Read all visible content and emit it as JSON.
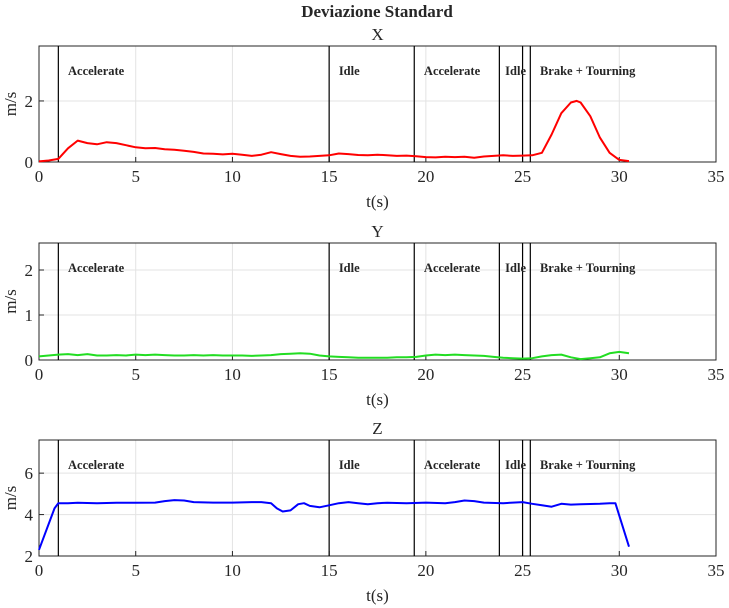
{
  "title": "Deviazione Standard",
  "chart_data": [
    {
      "type": "line",
      "title": "X",
      "xlabel": "t(s)",
      "ylabel": "m/s",
      "xlim": [
        0,
        35
      ],
      "ylim": [
        0,
        3.8
      ],
      "xticks": [
        0,
        5,
        10,
        15,
        20,
        25,
        30,
        35
      ],
      "yticks": [
        0,
        2
      ],
      "grid": true,
      "color": "#ff0000",
      "phase_lines": [
        1.0,
        15.0,
        19.4,
        23.8,
        25.0,
        25.4
      ],
      "phase_labels": [
        {
          "text": "Accelerate",
          "x": 1.5
        },
        {
          "text": "Idle",
          "x": 15.5
        },
        {
          "text": "Accelerate",
          "x": 19.9
        },
        {
          "text": "Idle",
          "x": 24.1
        },
        {
          "text": "Brake + Tourning",
          "x": 25.9
        }
      ],
      "x": [
        0,
        0.5,
        1,
        1.5,
        2,
        2.5,
        3,
        3.5,
        4,
        4.5,
        5,
        5.5,
        6,
        6.5,
        7,
        7.5,
        8,
        8.5,
        9,
        9.5,
        10,
        10.5,
        11,
        11.5,
        12,
        12.5,
        13,
        13.5,
        14,
        14.5,
        15,
        15.5,
        16,
        16.5,
        17,
        17.5,
        18,
        18.5,
        19,
        19.5,
        20,
        20.5,
        21,
        21.5,
        22,
        22.5,
        23,
        23.5,
        24,
        24.5,
        25,
        25.5,
        26,
        26.5,
        27,
        27.5,
        27.8,
        28,
        28.5,
        29,
        29.5,
        30,
        30.5
      ],
      "values": [
        0.02,
        0.05,
        0.1,
        0.45,
        0.7,
        0.62,
        0.58,
        0.65,
        0.62,
        0.55,
        0.48,
        0.45,
        0.46,
        0.42,
        0.4,
        0.37,
        0.33,
        0.28,
        0.27,
        0.25,
        0.27,
        0.24,
        0.2,
        0.24,
        0.32,
        0.26,
        0.2,
        0.17,
        0.18,
        0.2,
        0.22,
        0.28,
        0.26,
        0.23,
        0.22,
        0.24,
        0.22,
        0.2,
        0.21,
        0.19,
        0.16,
        0.15,
        0.17,
        0.16,
        0.17,
        0.14,
        0.18,
        0.2,
        0.22,
        0.2,
        0.21,
        0.22,
        0.3,
        0.9,
        1.6,
        1.95,
        2.0,
        1.95,
        1.5,
        0.8,
        0.3,
        0.07,
        0.03
      ]
    },
    {
      "type": "line",
      "title": "Y",
      "xlabel": "t(s)",
      "ylabel": "m/s",
      "xlim": [
        0,
        35
      ],
      "ylim": [
        0,
        2.6
      ],
      "xticks": [
        0,
        5,
        10,
        15,
        20,
        25,
        30,
        35
      ],
      "yticks": [
        0,
        1,
        2
      ],
      "grid": true,
      "color": "#22dd22",
      "phase_lines": [
        1.0,
        15.0,
        19.4,
        23.8,
        25.0,
        25.4
      ],
      "phase_labels": [
        {
          "text": "Accelerate",
          "x": 1.5
        },
        {
          "text": "Idle",
          "x": 15.5
        },
        {
          "text": "Accelerate",
          "x": 19.9
        },
        {
          "text": "Idle",
          "x": 24.1
        },
        {
          "text": "Brake + Tourning",
          "x": 25.9
        }
      ],
      "x": [
        0,
        0.5,
        1,
        1.5,
        2,
        2.5,
        3,
        3.5,
        4,
        4.5,
        5,
        5.5,
        6,
        6.5,
        7,
        7.5,
        8,
        8.5,
        9,
        9.5,
        10,
        10.5,
        11,
        11.5,
        12,
        12.5,
        13,
        13.5,
        14,
        14.5,
        15,
        15.5,
        16,
        16.5,
        17,
        17.5,
        18,
        18.5,
        19,
        19.5,
        20,
        20.5,
        21,
        21.5,
        22,
        22.5,
        23,
        23.5,
        24,
        24.5,
        25,
        25.5,
        26,
        26.5,
        27,
        27.5,
        28,
        28.5,
        29,
        29.5,
        30,
        30.5
      ],
      "values": [
        0.08,
        0.1,
        0.12,
        0.13,
        0.11,
        0.13,
        0.1,
        0.1,
        0.11,
        0.1,
        0.12,
        0.11,
        0.12,
        0.11,
        0.1,
        0.1,
        0.11,
        0.1,
        0.11,
        0.1,
        0.1,
        0.1,
        0.09,
        0.1,
        0.11,
        0.13,
        0.14,
        0.15,
        0.14,
        0.1,
        0.08,
        0.07,
        0.06,
        0.05,
        0.05,
        0.05,
        0.05,
        0.06,
        0.06,
        0.07,
        0.1,
        0.12,
        0.11,
        0.12,
        0.11,
        0.1,
        0.09,
        0.07,
        0.05,
        0.04,
        0.03,
        0.04,
        0.08,
        0.11,
        0.12,
        0.06,
        0.02,
        0.04,
        0.06,
        0.15,
        0.18,
        0.15
      ]
    },
    {
      "type": "line",
      "title": "Z",
      "xlabel": "t(s)",
      "ylabel": "m/s",
      "xlim": [
        0,
        35
      ],
      "ylim": [
        2,
        7.6
      ],
      "xticks": [
        0,
        5,
        10,
        15,
        20,
        25,
        30,
        35
      ],
      "yticks": [
        2,
        4,
        6
      ],
      "grid": true,
      "color": "#0000ff",
      "phase_lines": [
        1.0,
        15.0,
        19.4,
        23.8,
        25.0,
        25.4
      ],
      "phase_labels": [
        {
          "text": "Accelerate",
          "x": 1.5
        },
        {
          "text": "Idle",
          "x": 15.5
        },
        {
          "text": "Accelerate",
          "x": 19.9
        },
        {
          "text": "Idle",
          "x": 24.1
        },
        {
          "text": "Brake + Tourning",
          "x": 25.9
        }
      ],
      "x": [
        0,
        0.8,
        1,
        1.5,
        2,
        3,
        4,
        5,
        6,
        6.5,
        7,
        7.5,
        8,
        9,
        10,
        11,
        11.5,
        12,
        12.3,
        12.6,
        13,
        13.4,
        13.7,
        14,
        14.5,
        15,
        15.5,
        16,
        16.5,
        17,
        17.5,
        18,
        19,
        20,
        21,
        21.5,
        22,
        22.5,
        23,
        24,
        25,
        25.5,
        26,
        26.5,
        27,
        27.5,
        28,
        29,
        29.5,
        29.8,
        30.5
      ],
      "values": [
        2.3,
        4.3,
        4.55,
        4.55,
        4.57,
        4.55,
        4.57,
        4.57,
        4.58,
        4.65,
        4.7,
        4.68,
        4.6,
        4.58,
        4.58,
        4.6,
        4.6,
        4.55,
        4.3,
        4.15,
        4.2,
        4.5,
        4.55,
        4.42,
        4.35,
        4.45,
        4.55,
        4.6,
        4.55,
        4.5,
        4.55,
        4.57,
        4.55,
        4.58,
        4.55,
        4.6,
        4.68,
        4.65,
        4.58,
        4.55,
        4.6,
        4.52,
        4.45,
        4.38,
        4.52,
        4.48,
        4.5,
        4.52,
        4.55,
        4.55,
        2.45
      ]
    }
  ]
}
